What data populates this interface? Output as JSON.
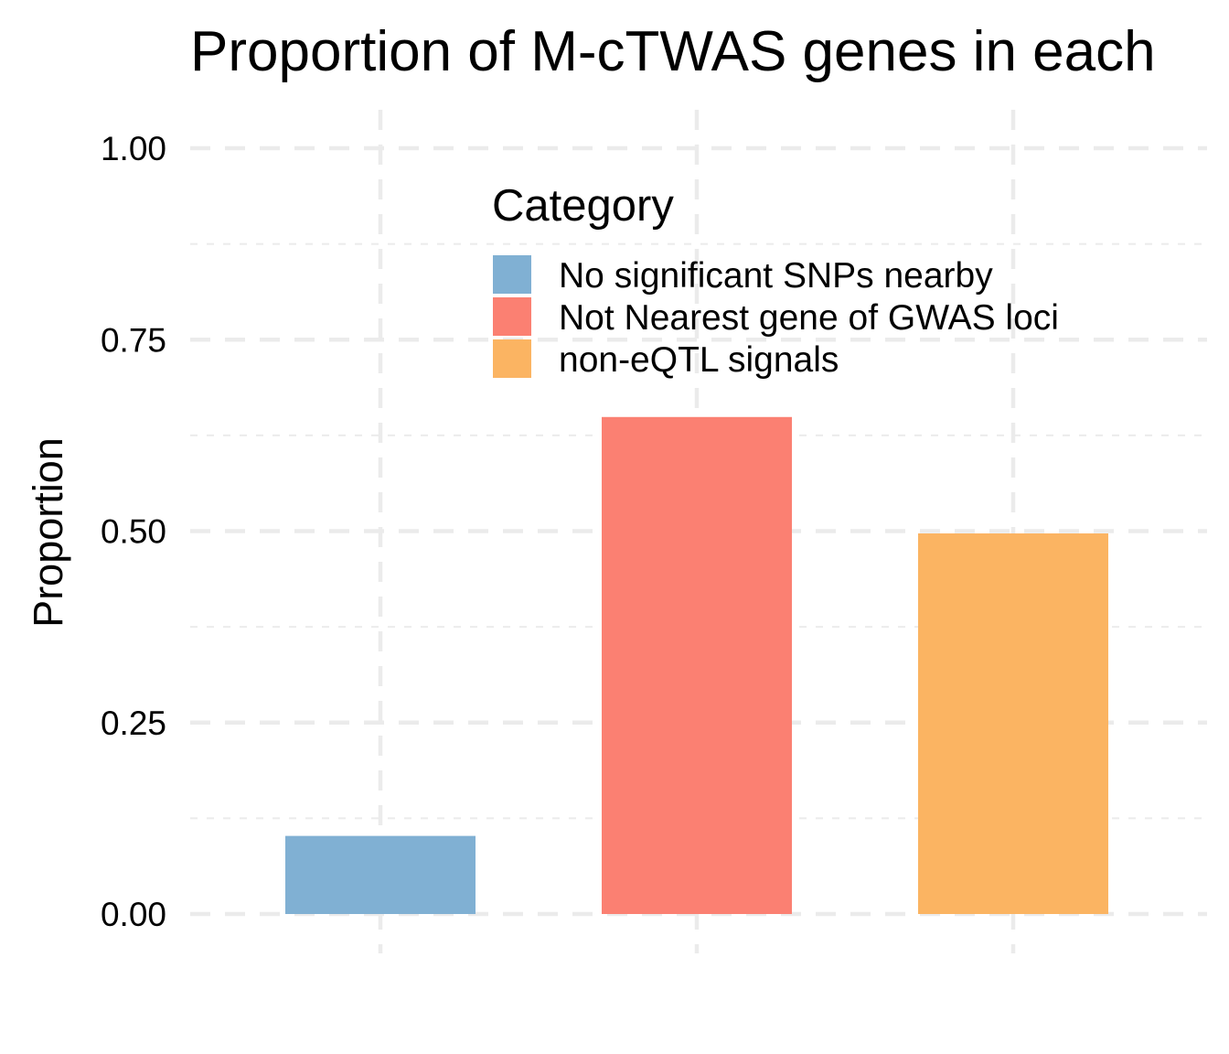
{
  "chart_data": {
    "type": "bar",
    "title": "Proportion of M-cTWAS genes in each",
    "xlabel": "",
    "ylabel": "Proportion",
    "ylim": [
      0,
      1
    ],
    "yticks": [
      "0.00",
      "0.25",
      "0.50",
      "0.75",
      "1.00"
    ],
    "ytick_values": [
      0,
      0.25,
      0.5,
      0.75,
      1.0
    ],
    "grid": true,
    "categories": [
      "No significant SNPs nearby",
      "Not Nearest gene of GWAS loci",
      "non-eQTL signals"
    ],
    "values": [
      0.102,
      0.649,
      0.497
    ],
    "colors": [
      "#80b0d3",
      "#fb8072",
      "#fbb462"
    ],
    "legend": {
      "title": "Category",
      "placement": "top-right",
      "entries": [
        "No significant SNPs nearby",
        "Not Nearest gene of GWAS loci",
        "non-eQTL signals"
      ]
    }
  }
}
